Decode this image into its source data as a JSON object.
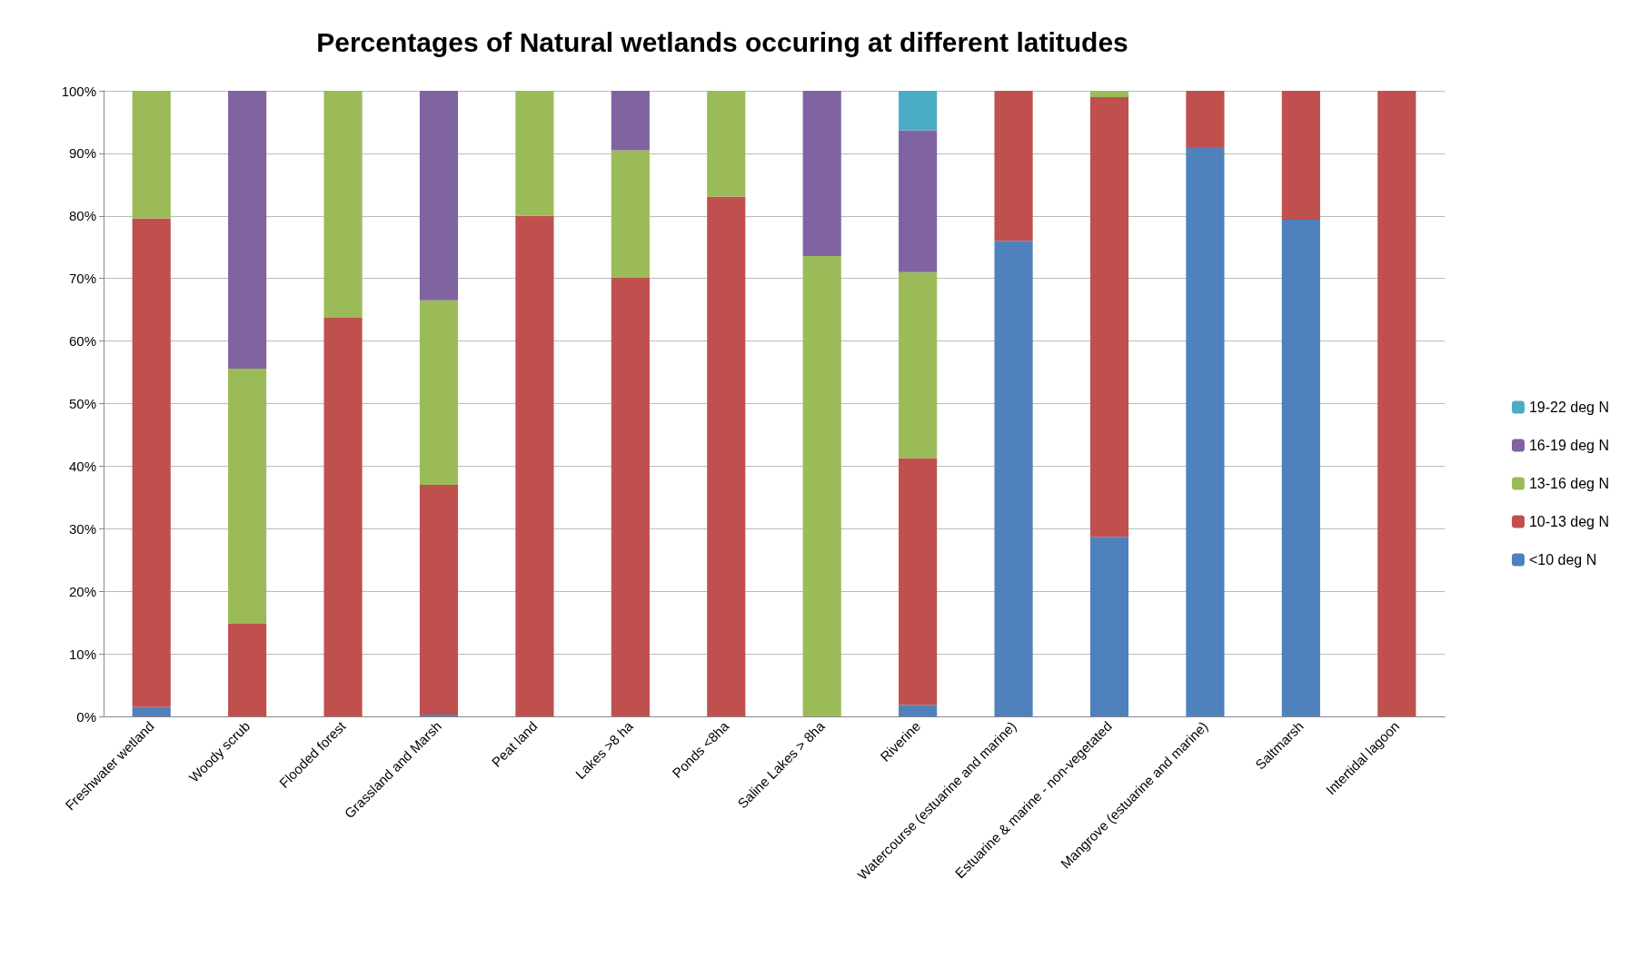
{
  "chart_data": {
    "type": "bar",
    "stacked": true,
    "title": "Percentages of Natural wetlands occuring at different latitudes",
    "categories": [
      "Freshwater wetland",
      "Woody scrub",
      "Flooded forest",
      "Grassland and Marsh",
      "Peat land",
      "Lakes >8 ha",
      "Ponds <8ha",
      "Saline Lakes > 8ha",
      "Riverine",
      "Watercourse (estuarine and marine)",
      "Estuarine & marine - non-vegetated",
      "Mangrove (estuarine and marine)",
      "Saltmarsh",
      "Intertidal lagoon"
    ],
    "series": [
      {
        "name": "<10 deg N",
        "color": "#4f81bd",
        "values": [
          1.5,
          0,
          0,
          0.3,
          0,
          0,
          0,
          0,
          1.8,
          76.0,
          28.7,
          91.0,
          79.4,
          0
        ]
      },
      {
        "name": "10-13 deg N",
        "color": "#c0504d",
        "values": [
          78.1,
          14.8,
          63.7,
          36.7,
          80.0,
          70.1,
          83.1,
          0,
          39.5,
          24.0,
          70.3,
          9.0,
          20.6,
          100
        ]
      },
      {
        "name": "13-16 deg N",
        "color": "#9bbb59",
        "values": [
          20.4,
          40.8,
          36.3,
          29.5,
          20.0,
          20.4,
          16.9,
          73.6,
          29.7,
          0,
          1.0,
          0,
          0,
          0
        ]
      },
      {
        "name": "16-19 deg N",
        "color": "#8064a2",
        "values": [
          0,
          44.4,
          0,
          33.5,
          0,
          9.5,
          0,
          26.4,
          22.7,
          0,
          0,
          0,
          0,
          0
        ]
      },
      {
        "name": "19-22 deg N",
        "color": "#4bacc6",
        "values": [
          0,
          0,
          0,
          0,
          0,
          0,
          0,
          0,
          6.3,
          0,
          0,
          0,
          0,
          0
        ]
      }
    ],
    "ylim": [
      0,
      100
    ],
    "yticks": [
      {
        "value": 0,
        "label": "0%"
      },
      {
        "value": 10,
        "label": "10%"
      },
      {
        "value": 20,
        "label": "20%"
      },
      {
        "value": 30,
        "label": "30%"
      },
      {
        "value": 40,
        "label": "40%"
      },
      {
        "value": 50,
        "label": "50%"
      },
      {
        "value": 60,
        "label": "60%"
      },
      {
        "value": 70,
        "label": "70%"
      },
      {
        "value": 80,
        "label": "80%"
      },
      {
        "value": 90,
        "label": "90%"
      },
      {
        "value": 100,
        "label": "100%"
      }
    ],
    "grid": "y",
    "legend": "right"
  }
}
